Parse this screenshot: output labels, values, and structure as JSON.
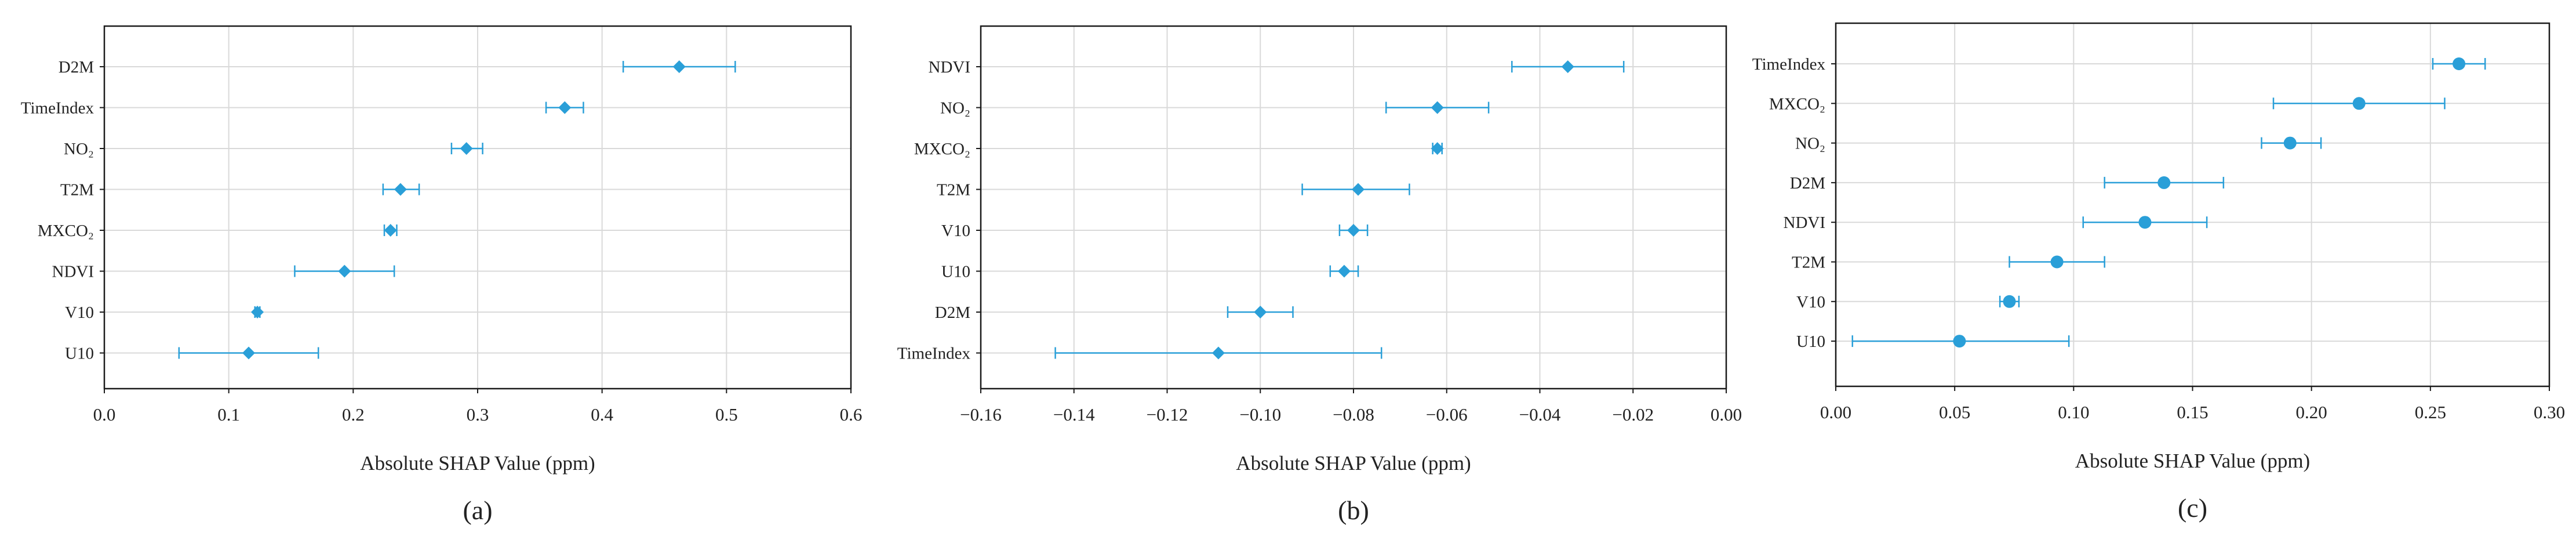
{
  "style": {
    "marker_color": "#2a9fd8",
    "grid_color": "#d9d9d9",
    "frame_color": "#1a1a1a"
  },
  "chart_data": [
    {
      "type": "scatter",
      "panel_label": "(a)",
      "xlabel": "Absolute SHAP Value (ppm)",
      "ylabel": "",
      "xlim": [
        0.0,
        0.6
      ],
      "x_ticks": [
        "0.0",
        "0.1",
        "0.2",
        "0.3",
        "0.4",
        "0.5",
        "0.6"
      ],
      "marker": "diamond",
      "grid": true,
      "categories": [
        "D2M",
        "TimeIndex",
        "NO₂",
        "T2M",
        "MXCO₂",
        "NDVI",
        "V10",
        "U10"
      ],
      "values": [
        0.462,
        0.37,
        0.291,
        0.238,
        0.23,
        0.193,
        0.123,
        0.116
      ],
      "error_low": [
        0.417,
        0.355,
        0.279,
        0.224,
        0.225,
        0.153,
        0.121,
        0.06
      ],
      "error_high": [
        0.507,
        0.385,
        0.304,
        0.253,
        0.235,
        0.233,
        0.125,
        0.172
      ]
    },
    {
      "type": "scatter",
      "panel_label": "(b)",
      "xlabel": "Absolute SHAP Value (ppm)",
      "ylabel": "",
      "xlim": [
        -0.16,
        0.0
      ],
      "x_ticks": [
        "−0.16",
        "−0.14",
        "−0.12",
        "−0.10",
        "−0.08",
        "−0.06",
        "−0.04",
        "−0.02",
        "0.00"
      ],
      "marker": "diamond",
      "grid": true,
      "categories": [
        "NDVI",
        "NO₂",
        "MXCO₂",
        "T2M",
        "V10",
        "U10",
        "D2M",
        "TimeIndex"
      ],
      "values": [
        -0.034,
        -0.062,
        -0.062,
        -0.079,
        -0.08,
        -0.082,
        -0.1,
        -0.109
      ],
      "error_low": [
        -0.046,
        -0.073,
        -0.063,
        -0.091,
        -0.083,
        -0.085,
        -0.107,
        -0.144
      ],
      "error_high": [
        -0.022,
        -0.051,
        -0.061,
        -0.068,
        -0.077,
        -0.079,
        -0.093,
        -0.074
      ]
    },
    {
      "type": "scatter",
      "panel_label": "(c)",
      "xlabel": "Absolute SHAP Value (ppm)",
      "ylabel": "",
      "xlim": [
        0.0,
        0.3
      ],
      "x_ticks": [
        "0.00",
        "0.05",
        "0.10",
        "0.15",
        "0.20",
        "0.25",
        "0.30"
      ],
      "marker": "circle",
      "grid": true,
      "categories": [
        "TimeIndex",
        "MXCO₂",
        "NO₂",
        "D2M",
        "NDVI",
        "T2M",
        "V10",
        "U10"
      ],
      "values": [
        0.262,
        0.22,
        0.191,
        0.138,
        0.13,
        0.093,
        0.073,
        0.052
      ],
      "error_low": [
        0.251,
        0.184,
        0.179,
        0.113,
        0.104,
        0.073,
        0.069,
        0.007
      ],
      "error_high": [
        0.273,
        0.256,
        0.204,
        0.163,
        0.156,
        0.113,
        0.077,
        0.098
      ]
    }
  ]
}
